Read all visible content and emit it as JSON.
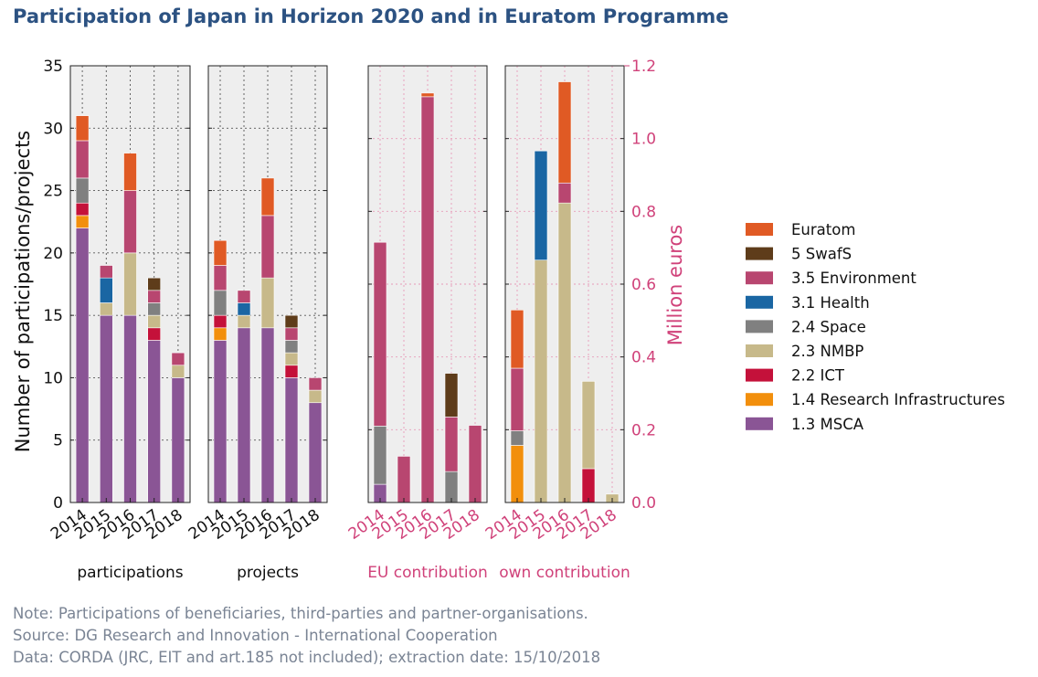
{
  "title": "Participation of Japan in Horizon 2020 and in Euratom Programme",
  "notes": [
    "Note: Participations of beneficiaries, third-parties and partner-organisations.",
    "Source: DG Research and Innovation - International Cooperation",
    "Data: CORDA (JRC, EIT and art.185 not included); extraction date: 15/10/2018"
  ],
  "colors": {
    "Euratom": "#e05a24",
    "5 SwafS": "#5e3c1a",
    "3.5 Environment": "#b84670",
    "3.1 Health": "#1a66a3",
    "2.4 Space": "#808080",
    "2.3 NMBP": "#c7b98a",
    "2.2 ICT": "#c4113a",
    "1.4 Research Infrastructures": "#f28f0c",
    "1.3 MSCA": "#8a5595",
    "axis_pink": "#d0427a",
    "plot_bg": "#eeeeee"
  },
  "legend_order": [
    "Euratom",
    "5 SwafS",
    "3.5 Environment",
    "3.1 Health",
    "2.4 Space",
    "2.3 NMBP",
    "2.2 ICT",
    "1.4 Research Infrastructures",
    "1.3 MSCA"
  ],
  "chart_data": [
    {
      "type": "bar",
      "stacked": true,
      "label": "participations",
      "categories": [
        "2014",
        "2015",
        "2016",
        "2017",
        "2018"
      ],
      "ylabel": "Number of participations/projects",
      "ylim": [
        0,
        35
      ],
      "yticks": [
        "0",
        "5",
        "10",
        "15",
        "20",
        "25",
        "30",
        "35"
      ],
      "grid": true,
      "series": [
        {
          "name": "1.3 MSCA",
          "values": [
            22,
            15,
            15,
            13,
            10
          ]
        },
        {
          "name": "1.4 Research Infrastructures",
          "values": [
            1,
            0,
            0,
            0,
            0
          ]
        },
        {
          "name": "2.2 ICT",
          "values": [
            1,
            0,
            0,
            1,
            0
          ]
        },
        {
          "name": "2.3 NMBP",
          "values": [
            0,
            1,
            5,
            1,
            1
          ]
        },
        {
          "name": "2.4 Space",
          "values": [
            2,
            0,
            0,
            1,
            0
          ]
        },
        {
          "name": "3.1 Health",
          "values": [
            0,
            2,
            0,
            0,
            0
          ]
        },
        {
          "name": "3.5 Environment",
          "values": [
            3,
            1,
            5,
            1,
            1
          ]
        },
        {
          "name": "5 SwafS",
          "values": [
            0,
            0,
            0,
            1,
            0
          ]
        },
        {
          "name": "Euratom",
          "values": [
            2,
            0,
            3,
            0,
            0
          ]
        }
      ]
    },
    {
      "type": "bar",
      "stacked": true,
      "label": "projects",
      "categories": [
        "2014",
        "2015",
        "2016",
        "2017",
        "2018"
      ],
      "ylim": [
        0,
        35
      ],
      "grid": true,
      "series": [
        {
          "name": "1.3 MSCA",
          "values": [
            13,
            14,
            14,
            10,
            8
          ]
        },
        {
          "name": "1.4 Research Infrastructures",
          "values": [
            1,
            0,
            0,
            0,
            0
          ]
        },
        {
          "name": "2.2 ICT",
          "values": [
            1,
            0,
            0,
            1,
            0
          ]
        },
        {
          "name": "2.3 NMBP",
          "values": [
            0,
            1,
            4,
            1,
            1
          ]
        },
        {
          "name": "2.4 Space",
          "values": [
            2,
            0,
            0,
            1,
            0
          ]
        },
        {
          "name": "3.1 Health",
          "values": [
            0,
            1,
            0,
            0,
            0
          ]
        },
        {
          "name": "3.5 Environment",
          "values": [
            2,
            1,
            5,
            1,
            1
          ]
        },
        {
          "name": "5 SwafS",
          "values": [
            0,
            0,
            0,
            1,
            0
          ]
        },
        {
          "name": "Euratom",
          "values": [
            2,
            0,
            3,
            0,
            0
          ]
        }
      ]
    },
    {
      "type": "bar",
      "stacked": true,
      "label": "EU contribution",
      "categories": [
        "2014",
        "2015",
        "2016",
        "2017",
        "2018"
      ],
      "ylim": [
        0,
        1.2
      ],
      "grid": true,
      "series": [
        {
          "name": "1.3 MSCA",
          "values": [
            0.05,
            0,
            0,
            0,
            0
          ]
        },
        {
          "name": "2.4 Space",
          "values": [
            0.16,
            0,
            0,
            0.085,
            0
          ]
        },
        {
          "name": "3.5 Environment",
          "values": [
            0.505,
            0.127,
            1.115,
            0.15,
            0.212
          ]
        },
        {
          "name": "5 SwafS",
          "values": [
            0,
            0,
            0,
            0.12,
            0
          ]
        },
        {
          "name": "Euratom",
          "values": [
            0,
            0,
            0.01,
            0,
            0
          ]
        }
      ]
    },
    {
      "type": "bar",
      "stacked": true,
      "label": "own contribution",
      "categories": [
        "2014",
        "2015",
        "2016",
        "2017",
        "2018"
      ],
      "ylabel": "Million euros",
      "ylim": [
        0,
        1.2
      ],
      "yticks": [
        "0.0",
        "0.2",
        "0.4",
        "0.6",
        "0.8",
        "1.0",
        "1.2"
      ],
      "grid": true,
      "series": [
        {
          "name": "1.4 Research Infrastructures",
          "values": [
            0.157,
            0,
            0,
            0,
            0
          ]
        },
        {
          "name": "2.2 ICT",
          "values": [
            0,
            0,
            0,
            0.093,
            0
          ]
        },
        {
          "name": "2.4 Space",
          "values": [
            0.04,
            0,
            0,
            0,
            0
          ]
        },
        {
          "name": "2.3 NMBP",
          "values": [
            0,
            0.666,
            0.823,
            0.24,
            0.023
          ]
        },
        {
          "name": "3.1 Health",
          "values": [
            0,
            0.3,
            0,
            0,
            0
          ]
        },
        {
          "name": "3.5 Environment",
          "values": [
            0.172,
            0,
            0.055,
            0,
            0
          ]
        },
        {
          "name": "Euratom",
          "values": [
            0.16,
            0,
            0.278,
            0,
            0
          ]
        }
      ]
    }
  ]
}
